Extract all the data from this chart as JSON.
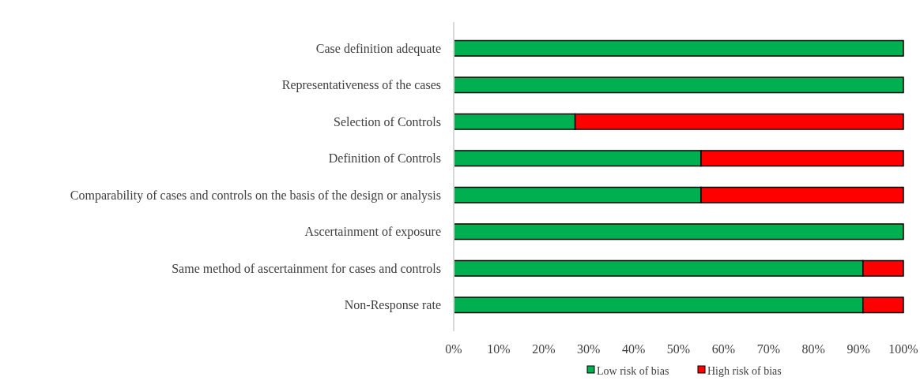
{
  "chart_data": {
    "type": "bar",
    "orientation": "horizontal",
    "stacked": true,
    "categories": [
      "Case definition adequate",
      "Representativeness of the cases",
      "Selection of Controls",
      "Definition of Controls",
      "Comparability of cases and controls on the basis of the design or analysis",
      "Ascertainment of exposure",
      "Same method of ascertainment for cases and controls",
      "Non-Response rate"
    ],
    "series": [
      {
        "name": "Low risk of bias",
        "color": "#00b050",
        "values": [
          100,
          100,
          27,
          55,
          55,
          100,
          91,
          91
        ]
      },
      {
        "name": "High risk of bias",
        "color": "#ff0000",
        "values": [
          0,
          0,
          73,
          45,
          45,
          0,
          9,
          9
        ]
      }
    ],
    "xlim": [
      0,
      100
    ],
    "xticks": [
      {
        "value": 0,
        "label": "0%"
      },
      {
        "value": 10,
        "label": "10%"
      },
      {
        "value": 20,
        "label": "20%"
      },
      {
        "value": 30,
        "label": "30%"
      },
      {
        "value": 40,
        "label": "40%"
      },
      {
        "value": 50,
        "label": "50%"
      },
      {
        "value": 60,
        "label": "60%"
      },
      {
        "value": 70,
        "label": "70%"
      },
      {
        "value": 80,
        "label": "80%"
      },
      {
        "value": 90,
        "label": "90%"
      },
      {
        "value": 100,
        "label": "100%"
      }
    ],
    "grid": false,
    "legend": "bottom"
  }
}
